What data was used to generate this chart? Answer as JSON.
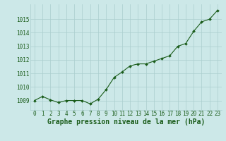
{
  "x": [
    0,
    1,
    2,
    3,
    4,
    5,
    6,
    7,
    8,
    9,
    10,
    11,
    12,
    13,
    14,
    15,
    16,
    17,
    18,
    19,
    20,
    21,
    22,
    23
  ],
  "y": [
    1009.0,
    1009.3,
    1009.05,
    1008.85,
    1009.0,
    1009.0,
    1009.0,
    1008.75,
    1009.1,
    1009.8,
    1010.7,
    1011.1,
    1011.55,
    1011.7,
    1011.7,
    1011.9,
    1012.1,
    1012.3,
    1013.0,
    1013.2,
    1014.1,
    1014.8,
    1015.0,
    1015.65
  ],
  "line_color": "#1a5c1a",
  "marker_color": "#1a5c1a",
  "bg_color": "#cce8e8",
  "grid_color": "#aacece",
  "xlabel": "Graphe pression niveau de la mer (hPa)",
  "xlabel_color": "#1a5c1a",
  "ylabel_ticks": [
    1009,
    1010,
    1011,
    1012,
    1013,
    1014,
    1015
  ],
  "ylim": [
    1008.3,
    1016.1
  ],
  "xlim": [
    -0.5,
    23.5
  ],
  "tick_color": "#1a5c1a",
  "label_fontsize": 7,
  "tick_fontsize": 5.5
}
